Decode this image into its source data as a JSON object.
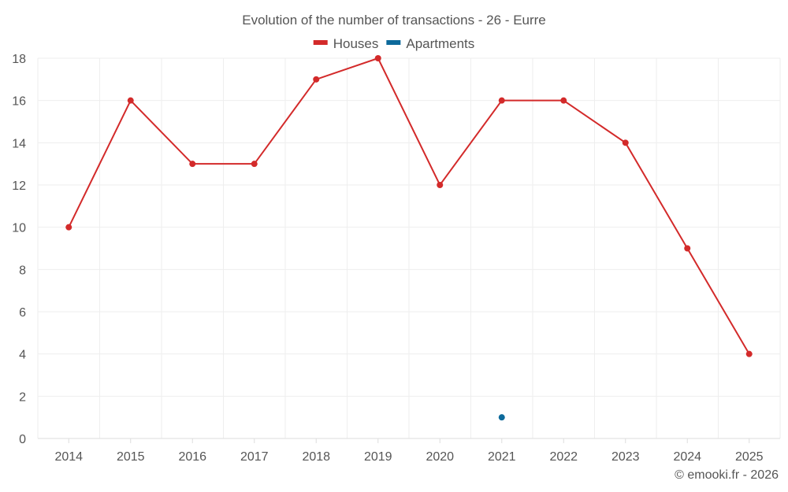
{
  "chart_data": {
    "type": "line",
    "title": "Evolution of the number of transactions - 26 - Eurre",
    "categories": [
      "2014",
      "2015",
      "2016",
      "2017",
      "2018",
      "2019",
      "2020",
      "2021",
      "2022",
      "2023",
      "2024",
      "2025"
    ],
    "ylim": [
      0,
      18
    ],
    "yticks": [
      0,
      2,
      4,
      6,
      8,
      10,
      12,
      14,
      16,
      18
    ],
    "legend_position": "top-center",
    "grid": true,
    "series": [
      {
        "name": "Houses",
        "color": "#d32a2a",
        "values": [
          10,
          16,
          13,
          13,
          17,
          18,
          12,
          16,
          16,
          14,
          9,
          4
        ]
      },
      {
        "name": "Apartments",
        "color": "#0d6a9b",
        "values": [
          null,
          null,
          null,
          null,
          null,
          null,
          null,
          1,
          null,
          null,
          null,
          null
        ]
      }
    ]
  },
  "credit": "© emooki.fr - 2026"
}
